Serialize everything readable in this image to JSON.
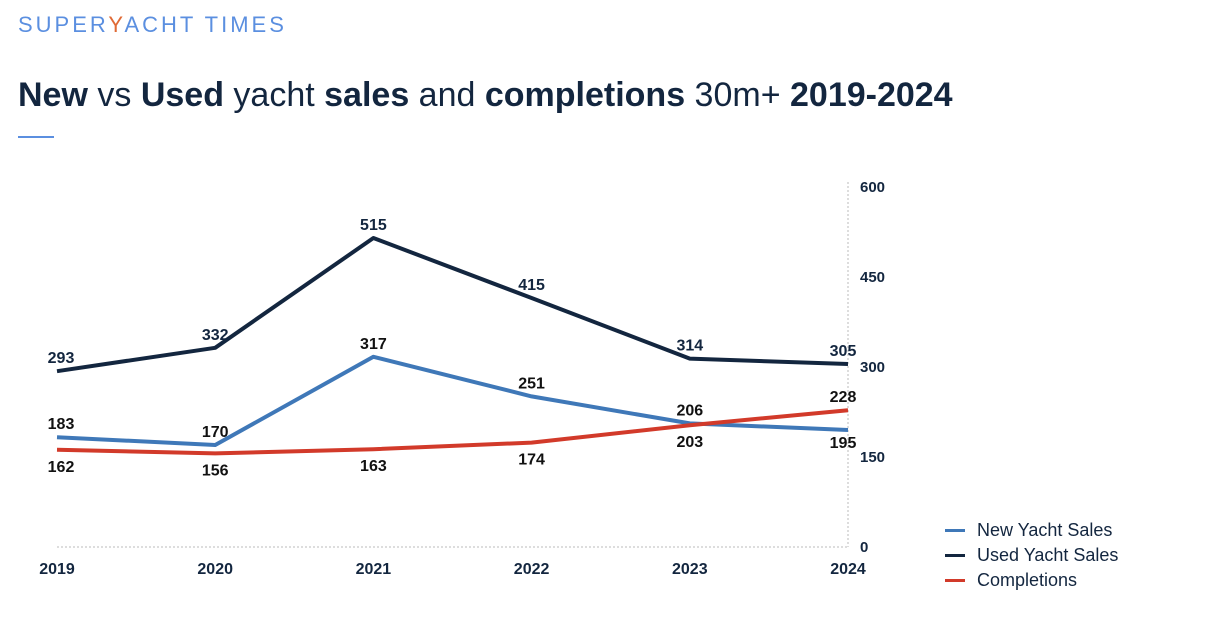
{
  "logo": {
    "text_before": "SUPER",
    "slash": "Y",
    "text_after": "ACHT TIMES",
    "full": "SUPERYACHT TIMES"
  },
  "title_segments": [
    {
      "text": "New",
      "bold": true
    },
    {
      "text": " vs ",
      "bold": false
    },
    {
      "text": "Used",
      "bold": true
    },
    {
      "text": " yacht ",
      "bold": false
    },
    {
      "text": "sales",
      "bold": true
    },
    {
      "text": " and ",
      "bold": false
    },
    {
      "text": "completions",
      "bold": true
    },
    {
      "text": " 30m+ ",
      "bold": false
    },
    {
      "text": "2019-2024",
      "bold": true
    }
  ],
  "chart_data": {
    "type": "line",
    "title": "New vs Used yacht sales and completions 30m+ 2019-2024",
    "categories": [
      "2019",
      "2020",
      "2021",
      "2022",
      "2023",
      "2024"
    ],
    "series": [
      {
        "name": "New Yacht Sales",
        "values": [
          183,
          170,
          317,
          251,
          206,
          195
        ],
        "color": "#3f78b8"
      },
      {
        "name": "Used Yacht Sales",
        "values": [
          293,
          332,
          515,
          415,
          314,
          305
        ],
        "color": "#13263f"
      },
      {
        "name": "Completions",
        "values": [
          162,
          156,
          163,
          174,
          203,
          228
        ],
        "color": "#d23a2a"
      }
    ],
    "y_axis": {
      "position": "right",
      "ylim": [
        0,
        600
      ],
      "ticks": [
        0,
        150,
        300,
        450,
        600
      ]
    },
    "grid": false,
    "legend": "bottom-right",
    "data_labels": true
  }
}
